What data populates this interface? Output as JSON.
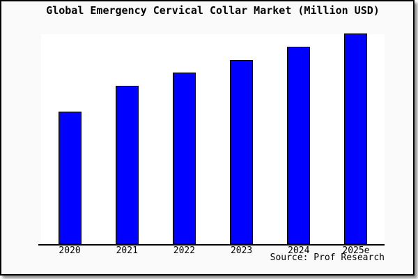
{
  "title": "Global Emergency Cervical Collar Market (Million USD)",
  "source": "Source: Prof Research",
  "colors": {
    "bar_fill": "#0000ff",
    "bar_border": "#000000",
    "frame_background": "#fafafa",
    "plot_background": "#ffffff",
    "axis": "#000000",
    "text": "#000000"
  },
  "chart_data": {
    "type": "bar",
    "categories": [
      "2020",
      "2021",
      "2022",
      "2023",
      "2024",
      "2025e"
    ],
    "values": [
      188,
      225,
      244,
      262,
      281,
      300
    ],
    "title": "Global Emergency Cervical Collar Market (Million USD)",
    "xlabel": "",
    "ylabel": "",
    "ylim": [
      0,
      301
    ],
    "y_axis_labeled": false,
    "grid": false,
    "legend": false,
    "note": "No y-axis scale shown in source image; values are relative bar heights on a 0-301 scale"
  }
}
